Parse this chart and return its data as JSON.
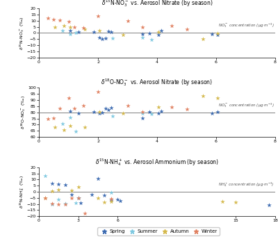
{
  "title1": "$\\delta^{15}$N-NO$_3^-$ vs. Aerosol Nitrate (by season)",
  "title2": "$\\delta^{18}$O-NO$_3^-$ vs. Aerosol Nitrate (by season)",
  "title3": "$\\delta^{15}$N-NH$_4^+$ vs. Aerosol Ammonium (by season)",
  "ylabel1": "$\\delta^{15}$N-NO$_3^-$ (‰)",
  "ylabel2": "$\\delta^{18}$O-NO$_3^-$ (‰)",
  "ylabel3": "$\\delta^{15}$N-NH$_4^+$ (‰)",
  "xlabel1": "NO$_3^-$ concentration (μg·m$^{-3}$)",
  "xlabel2": "NO$_3^-$ concentration (μg·m$^{-3}$)",
  "xlabel3": "NH$_4^+$ concentration (μg·m$^{-3}$)",
  "spring_color": "#3A69B0",
  "summer_color": "#7DC8E0",
  "autumn_color": "#D4B84A",
  "winter_color": "#E08060",
  "plot1": {
    "spring_x": [
      1.05,
      1.35,
      1.85,
      2.05,
      2.15,
      2.25,
      2.35,
      2.45,
      3.5,
      3.75,
      4.05,
      4.15,
      5.85,
      6.05
    ],
    "spring_y": [
      2.0,
      1.0,
      0.5,
      -4.0,
      -5.0,
      -4.5,
      1.5,
      1.0,
      -1.0,
      -0.5,
      -1.5,
      2.0,
      -1.0,
      -1.5
    ],
    "summer_x": [
      0.8,
      1.05,
      1.25,
      2.5,
      3.5,
      3.8
    ],
    "summer_y": [
      2.0,
      -1.0,
      0.0,
      -4.5,
      -4.0,
      -5.5
    ],
    "autumn_x": [
      0.55,
      0.85,
      1.05,
      1.55,
      2.05,
      2.85,
      4.05,
      5.55,
      6.05
    ],
    "autumn_y": [
      5.0,
      6.0,
      4.5,
      3.0,
      2.0,
      -1.5,
      0.5,
      -5.0,
      -0.5
    ],
    "winter_x": [
      0.3,
      0.5,
      0.7,
      1.0,
      1.2,
      1.5,
      2.0,
      3.0,
      3.5,
      4.5,
      5.0
    ],
    "winter_y": [
      12.0,
      11.0,
      10.5,
      9.0,
      5.0,
      4.0,
      14.0,
      10.0,
      5.0,
      6.0,
      3.0
    ]
  },
  "plot2": {
    "spring_x": [
      1.05,
      1.35,
      1.85,
      2.05,
      2.15,
      2.25,
      2.35,
      2.45,
      3.5,
      3.75,
      4.05,
      4.15,
      5.85,
      6.05
    ],
    "spring_y": [
      81.0,
      79.5,
      80.5,
      79.0,
      80.0,
      83.0,
      82.0,
      84.0,
      75.5,
      80.5,
      79.5,
      81.0,
      79.5,
      80.5
    ],
    "summer_x": [
      0.8,
      1.05,
      1.25,
      2.5,
      3.5,
      3.8
    ],
    "summer_y": [
      71.0,
      76.0,
      64.5,
      77.0,
      79.0,
      78.5
    ],
    "autumn_x": [
      0.55,
      0.85,
      1.05,
      1.55,
      2.05,
      2.85,
      4.05,
      5.55,
      6.05
    ],
    "autumn_y": [
      68.0,
      65.5,
      69.0,
      68.0,
      80.5,
      79.5,
      84.5,
      93.5,
      91.5
    ],
    "winter_x": [
      0.3,
      0.5,
      0.7,
      1.0,
      1.2,
      1.5,
      2.0,
      3.0,
      3.5,
      4.5,
      5.0
    ],
    "winter_y": [
      74.5,
      75.5,
      83.5,
      91.5,
      83.5,
      85.5,
      97.0,
      85.5,
      80.5,
      84.5,
      82.5
    ]
  },
  "plot3": {
    "spring_x": [
      1.0,
      1.5,
      2.0,
      2.5,
      3.0,
      3.2,
      4.0,
      4.5,
      5.0,
      5.5,
      6.0,
      6.2,
      17.5
    ],
    "spring_y": [
      7.0,
      6.0,
      5.5,
      -2.0,
      -5.0,
      -9.0,
      -2.0,
      11.0,
      -3.0,
      -7.0,
      -6.0,
      -7.5,
      -11.0
    ],
    "summer_x": [
      0.5,
      1.0,
      1.5,
      2.0,
      2.8,
      3.0,
      5.5
    ],
    "summer_y": [
      13.0,
      -10.0,
      -6.0,
      -9.5,
      -9.0,
      -5.0,
      -0.5
    ],
    "autumn_x": [
      0.5,
      1.0,
      1.5,
      2.5,
      3.0,
      4.5,
      5.0,
      5.5,
      14.0,
      15.0
    ],
    "autumn_y": [
      -5.0,
      0.5,
      1.5,
      1.0,
      4.0,
      -5.0,
      -8.5,
      -8.0,
      -8.0,
      -8.5
    ],
    "winter_x": [
      0.5,
      1.0,
      1.5,
      2.0,
      2.5,
      3.0,
      3.5,
      5.5
    ],
    "winter_y": [
      -5.0,
      -9.5,
      -10.0,
      -10.0,
      -5.0,
      -5.0,
      -17.5,
      -5.5
    ]
  }
}
